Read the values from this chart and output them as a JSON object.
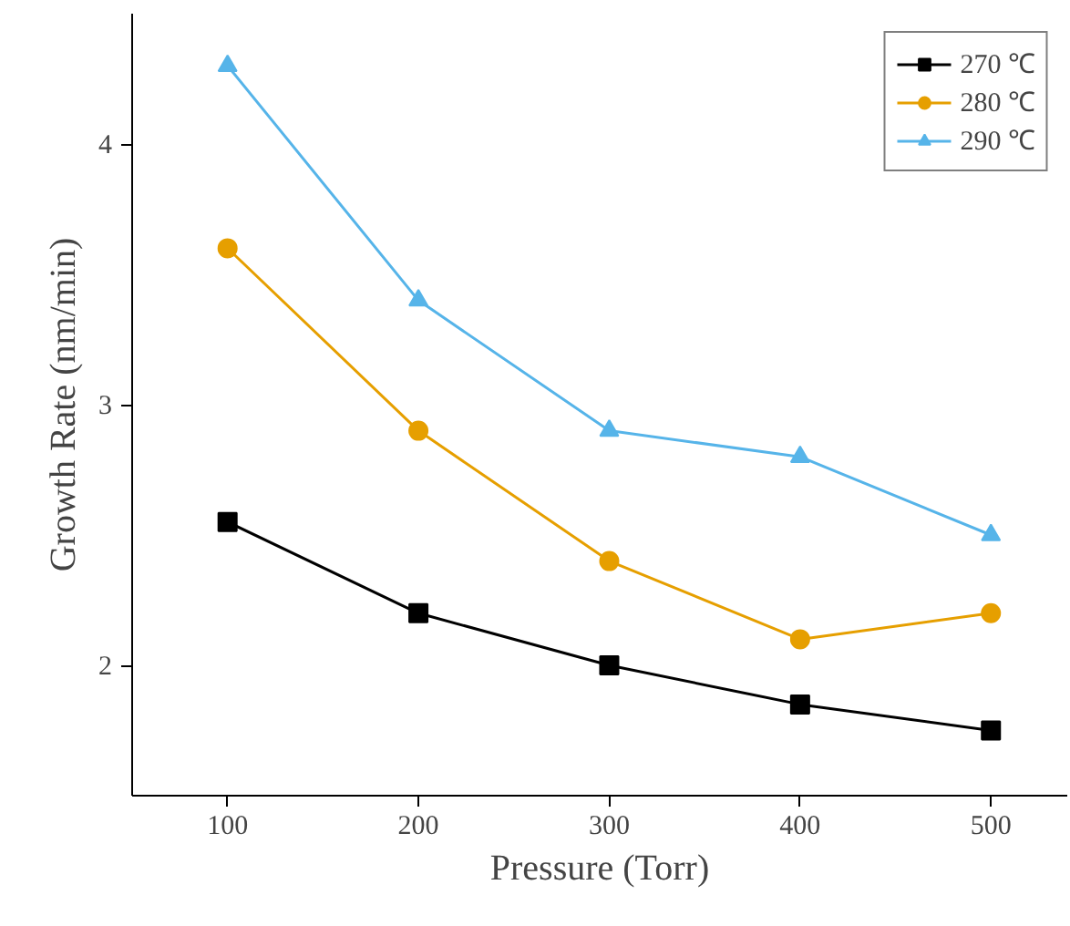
{
  "chart_data": {
    "type": "line",
    "xlabel": "Pressure (Torr)",
    "ylabel": "Growth Rate (nm/min)",
    "x": [
      100,
      200,
      300,
      400,
      500
    ],
    "series": [
      {
        "name": "270 ℃",
        "color": "#000000",
        "marker": "square",
        "values": [
          2.55,
          2.2,
          2.0,
          1.85,
          1.75
        ]
      },
      {
        "name": "280 ℃",
        "color": "#e69f00",
        "marker": "circle",
        "values": [
          3.6,
          2.9,
          2.4,
          2.1,
          2.2
        ]
      },
      {
        "name": "290 ℃",
        "color": "#56b4e9",
        "marker": "triangle",
        "values": [
          4.3,
          3.4,
          2.9,
          2.8,
          2.5
        ]
      }
    ],
    "xlim": [
      50,
      540
    ],
    "ylim": [
      1.5,
      4.5
    ],
    "xticks": [
      100,
      200,
      300,
      400,
      500
    ],
    "yticks": [
      2,
      3,
      4
    ],
    "grid": false,
    "legend": "top right",
    "line_style": "solid"
  }
}
